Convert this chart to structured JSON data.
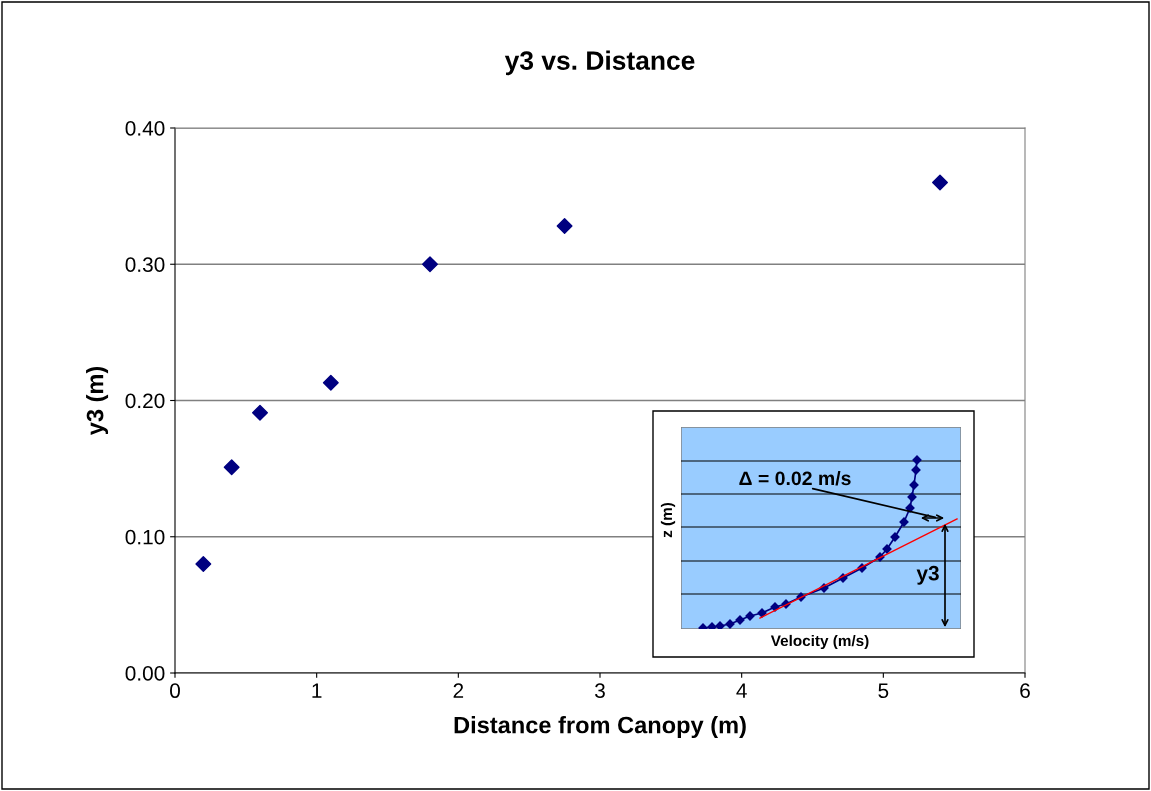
{
  "chart_data": {
    "type": "scatter",
    "title": "y3 vs. Distance",
    "xlabel": "Distance from Canopy (m)",
    "ylabel": "y3 (m)",
    "x": [
      0.2,
      0.4,
      0.6,
      1.1,
      1.8,
      2.75,
      5.4
    ],
    "series": [
      {
        "color": "#000080",
        "values": [
          0.08,
          0.151,
          0.191,
          0.213,
          0.3,
          0.328,
          0.36
        ]
      }
    ],
    "xlim": [
      0,
      6
    ],
    "xticks": [
      0,
      1,
      2,
      3,
      4,
      5,
      6
    ],
    "ylim": [
      0,
      0.4
    ],
    "yticks": [
      {
        "value": 0,
        "label": "0.00"
      },
      {
        "value": 0.1,
        "label": "0.10"
      },
      {
        "value": 0.2,
        "label": "0.20"
      },
      {
        "value": 0.3,
        "label": "0.30"
      },
      {
        "value": 0.4,
        "label": "0.40"
      }
    ],
    "grid": "y",
    "legend": false,
    "marker": "diamond",
    "annotations": [
      "Δ = 0.02 m/s",
      "z (m)",
      "Velocity (m/s)",
      "y3"
    ]
  }
}
